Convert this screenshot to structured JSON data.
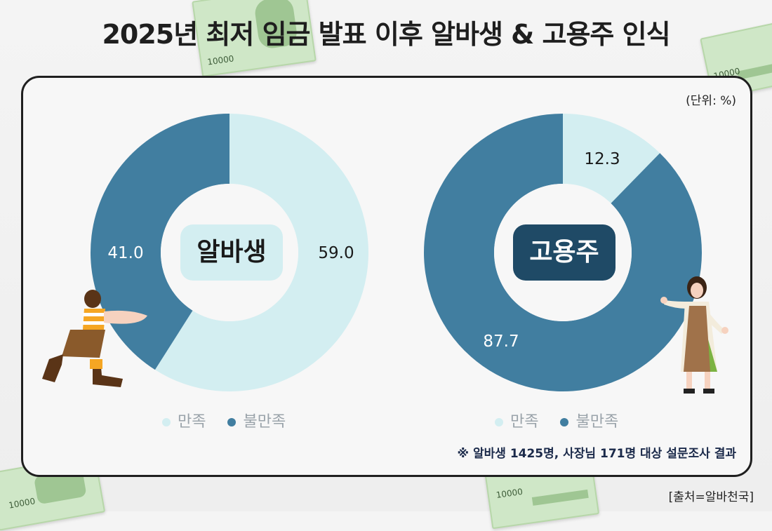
{
  "title": "2025년 최저 임금 발표 이후 알바생 & 고용주 인식",
  "unit": "(단위: %)",
  "note": "※ 알바생 1425명, 사장님 171명 대상 설문조사 결과",
  "source": "[출처=알바천국]",
  "bill_text": "10000",
  "colors": {
    "satisfied": "#d3eef1",
    "dissatisfied": "#417ea0",
    "albasaeng_label_bg": "#d3eef1",
    "employer_label_bg": "#1f4a66"
  },
  "chart_data": [
    {
      "type": "pie",
      "center_label": "알바생",
      "categories": [
        "만족",
        "불만족"
      ],
      "values": [
        59.0,
        41.0
      ],
      "value_labels": [
        "59.0",
        "41.0"
      ]
    },
    {
      "type": "pie",
      "center_label": "고용주",
      "categories": [
        "만족",
        "불만족"
      ],
      "values": [
        12.3,
        87.7
      ],
      "value_labels": [
        "12.3",
        "87.7"
      ]
    }
  ]
}
